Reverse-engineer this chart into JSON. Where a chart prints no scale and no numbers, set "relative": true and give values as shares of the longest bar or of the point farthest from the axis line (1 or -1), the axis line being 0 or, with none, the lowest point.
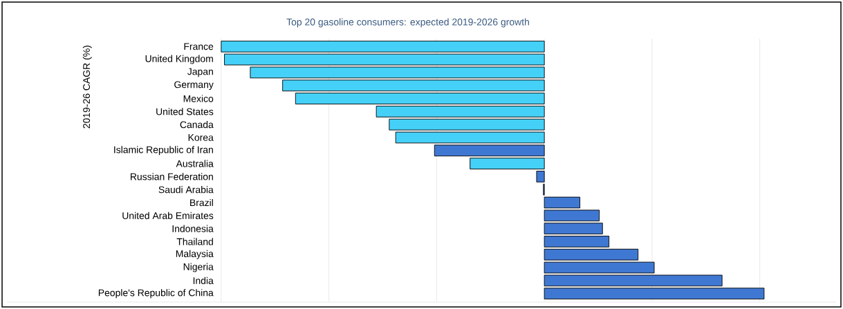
{
  "chart_data": {
    "type": "bar",
    "orientation": "horizontal",
    "relative": true,
    "title": "Top 20 gasoline consumers: expected 2019-2026 growth",
    "ylabel": "2019-26 CAGR (%)",
    "grid": "x",
    "categories": [
      "France",
      "United Kingdom",
      "Japan",
      "Germany",
      "Mexico",
      "United States",
      "Canada",
      "Korea",
      "Islamic Republic of Iran",
      "Australia",
      "Russian Federation",
      "Saudi Arabia",
      "Brazil",
      "United Arab Emirates",
      "Indonesia",
      "Thailand",
      "Malaysia",
      "Nigeria",
      "India",
      "People's Republic of China"
    ],
    "values": [
      -1,
      -0.99,
      -0.91,
      -0.81,
      -0.77,
      -0.52,
      -0.48,
      -0.46,
      -0.34,
      -0.23,
      -0.024,
      -0.003,
      0.11,
      0.17,
      0.18,
      0.2,
      0.29,
      0.34,
      0.55,
      0.68
    ],
    "colors": [
      "#45d0f8",
      "#45d0f8",
      "#45d0f8",
      "#45d0f8",
      "#45d0f8",
      "#45d0f8",
      "#45d0f8",
      "#45d0f8",
      "#3f78d2",
      "#45d0f8",
      "#3f78d2",
      "#3f78d2",
      "#3f78d2",
      "#3f78d2",
      "#3f78d2",
      "#3f78d2",
      "#3f78d2",
      "#3f78d2",
      "#3f78d2",
      "#3f78d2"
    ]
  }
}
